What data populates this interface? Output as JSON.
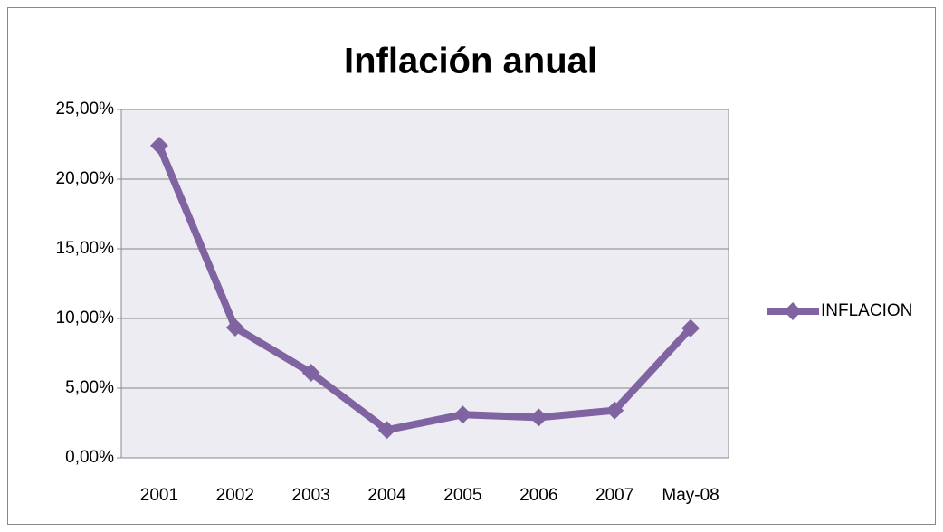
{
  "chart_data": {
    "type": "line",
    "title": "Inflación anual",
    "categories": [
      "2001",
      "2002",
      "2003",
      "2004",
      "2005",
      "2006",
      "2007",
      "May-08"
    ],
    "series": [
      {
        "name": "INFLACION",
        "color": "#8064a2",
        "values": [
          22.4,
          9.35,
          6.1,
          2.0,
          3.1,
          2.9,
          3.4,
          9.3
        ]
      }
    ],
    "ylim": [
      0,
      25
    ],
    "yticks": [
      {
        "value": 0,
        "label": "0,00%"
      },
      {
        "value": 5,
        "label": "5,00%"
      },
      {
        "value": 10,
        "label": "10,00%"
      },
      {
        "value": 15,
        "label": "15,00%"
      },
      {
        "value": 20,
        "label": "20,00%"
      },
      {
        "value": 25,
        "label": "25,00%"
      }
    ],
    "grid": true,
    "legend": "right"
  }
}
